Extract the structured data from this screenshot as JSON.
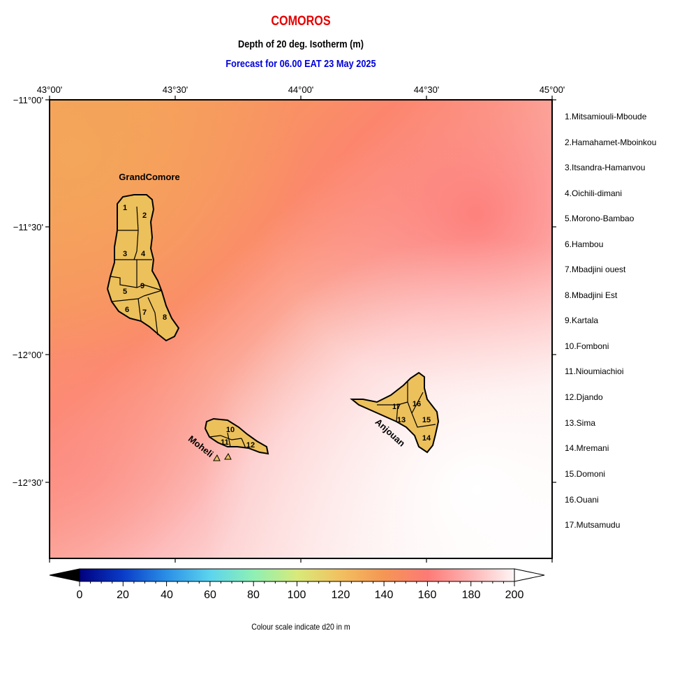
{
  "header": {
    "country": "COMOROS",
    "subtitle": "Depth of 20 deg. Isotherm (m)",
    "forecast": "Forecast for  06.00 EAT 23 May 2025"
  },
  "axes": {
    "lon_labels": [
      "43°00'",
      "43°30'",
      "44°00'",
      "44°30'",
      "45°00'"
    ],
    "lat_labels": [
      "−11°00'",
      "−11°30'",
      "−12°00'",
      "−12°30'"
    ]
  },
  "islands": {
    "grand_comore": "GrandComore",
    "moheli": "Moheli",
    "anjouan": "Anjouan"
  },
  "region_numbers": [
    "1",
    "2",
    "3",
    "4",
    "5",
    "6",
    "7",
    "8",
    "9",
    "10",
    "11",
    "12",
    "13",
    "14",
    "15",
    "16",
    "17"
  ],
  "legend_items": [
    "1.Mitsamiouli-Mboude",
    "2.Hamahamet-Mboinkou",
    "3.Itsandra-Hamanvou",
    "4.Oichili-dimani",
    "5.Morono-Bambao",
    "6.Hambou",
    "7.Mbadjini ouest",
    "8.Mbadjini Est",
    "9.Kartala",
    "10.Fomboni",
    "11.Nioumiachioi",
    "12.Djando",
    "13.Sima",
    "14.Mremani",
    "15.Domoni",
    "16.Ouani",
    "17.Mutsamudu"
  ],
  "colorbar": {
    "ticks": [
      "0",
      "20",
      "40",
      "60",
      "80",
      "100",
      "120",
      "140",
      "160",
      "180",
      "200"
    ],
    "caption": "Colour scale indicate d20 in m",
    "colors": [
      "#00007f",
      "#0a3cc8",
      "#2a8fe6",
      "#5cd4ee",
      "#8ef0b4",
      "#d8ea7a",
      "#f2c060",
      "#f59654",
      "#fd7a76",
      "#fdb4b4",
      "#fff6f6"
    ]
  }
}
